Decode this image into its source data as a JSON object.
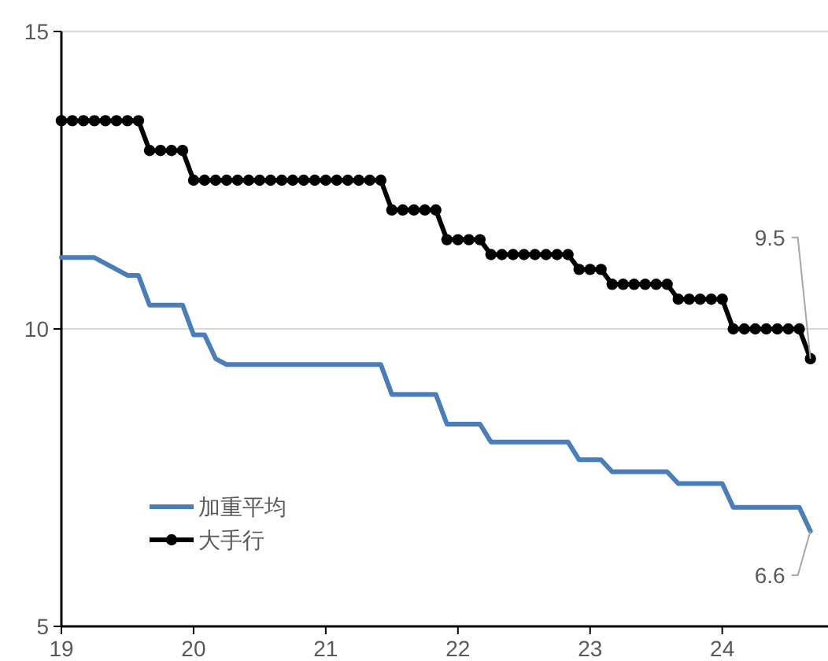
{
  "chart_data": {
    "type": "line",
    "x": [
      19,
      19.083,
      19.167,
      19.25,
      19.333,
      19.417,
      19.5,
      19.583,
      19.667,
      19.75,
      19.833,
      19.917,
      20,
      20.083,
      20.167,
      20.25,
      20.333,
      20.417,
      20.5,
      20.583,
      20.667,
      20.75,
      20.833,
      20.917,
      21,
      21.083,
      21.167,
      21.25,
      21.333,
      21.417,
      21.5,
      21.583,
      21.667,
      21.75,
      21.833,
      21.917,
      22,
      22.083,
      22.167,
      22.25,
      22.333,
      22.417,
      22.5,
      22.583,
      22.667,
      22.75,
      22.833,
      22.917,
      23,
      23.083,
      23.167,
      23.25,
      23.333,
      23.417,
      23.5,
      23.583,
      23.667,
      23.75,
      23.833,
      23.917,
      24,
      24.083,
      24.167,
      24.25,
      24.333,
      24.417,
      24.5,
      24.583,
      24.667
    ],
    "series": [
      {
        "name": "加重平均",
        "color": "#4a7ebb",
        "marker": "none",
        "values": [
          11.2,
          11.2,
          11.2,
          11.2,
          11.1,
          11.0,
          10.9,
          10.9,
          10.4,
          10.4,
          10.4,
          10.4,
          9.9,
          9.9,
          9.5,
          9.4,
          9.4,
          9.4,
          9.4,
          9.4,
          9.4,
          9.4,
          9.4,
          9.4,
          9.4,
          9.4,
          9.4,
          9.4,
          9.4,
          9.4,
          8.9,
          8.9,
          8.9,
          8.9,
          8.9,
          8.4,
          8.4,
          8.4,
          8.4,
          8.1,
          8.1,
          8.1,
          8.1,
          8.1,
          8.1,
          8.1,
          8.1,
          7.8,
          7.8,
          7.8,
          7.6,
          7.6,
          7.6,
          7.6,
          7.6,
          7.6,
          7.4,
          7.4,
          7.4,
          7.4,
          7.4,
          7.0,
          7.0,
          7.0,
          7.0,
          7.0,
          7.0,
          7.0,
          6.6
        ]
      },
      {
        "name": "大手行",
        "color": "#000000",
        "marker": "circle",
        "values": [
          13.5,
          13.5,
          13.5,
          13.5,
          13.5,
          13.5,
          13.5,
          13.5,
          13,
          13,
          13,
          13,
          12.5,
          12.5,
          12.5,
          12.5,
          12.5,
          12.5,
          12.5,
          12.5,
          12.5,
          12.5,
          12.5,
          12.5,
          12.5,
          12.5,
          12.5,
          12.5,
          12.5,
          12.5,
          12,
          12,
          12,
          12,
          12,
          11.5,
          11.5,
          11.5,
          11.5,
          11.25,
          11.25,
          11.25,
          11.25,
          11.25,
          11.25,
          11.25,
          11.25,
          11,
          11,
          11,
          10.75,
          10.75,
          10.75,
          10.75,
          10.75,
          10.75,
          10.5,
          10.5,
          10.5,
          10.5,
          10.5,
          10,
          10,
          10,
          10,
          10,
          10,
          10,
          9.5
        ]
      }
    ],
    "xlim": [
      19,
      24.8
    ],
    "xticks": [
      19,
      20,
      21,
      22,
      23,
      24
    ],
    "ylim": [
      5,
      15
    ],
    "yticks": [
      5,
      10,
      15
    ],
    "grid": "y",
    "legend": "bottom left",
    "line_style": "solid",
    "annotations": [
      {
        "text": "9.5",
        "x": 24.667,
        "y": 9.5
      },
      {
        "text": "6.6",
        "x": 24.667,
        "y": 6.6
      }
    ]
  }
}
